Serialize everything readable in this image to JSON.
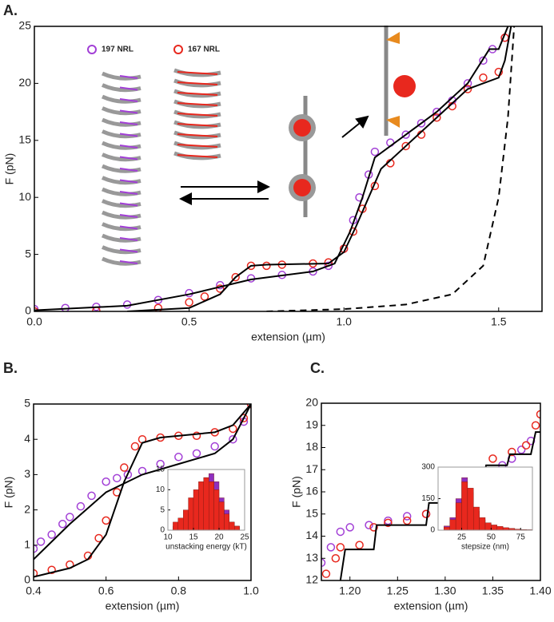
{
  "chart_data": [
    {
      "type": "scatter",
      "panel_label": "A.",
      "xlabel": "extension (µm)",
      "ylabel": "F (pN)",
      "xlim": [
        0,
        1.64
      ],
      "xticks": [
        {
          "value": 0,
          "label": "0.0"
        },
        0.5,
        {
          "value": 1,
          "label": "1.0"
        },
        1.5
      ],
      "ylim": [
        0,
        25
      ],
      "yticks": [
        0,
        5,
        10,
        15,
        20,
        25
      ],
      "series": [
        {
          "name": "197  NRL",
          "color": "#a23fd6",
          "style": "markers",
          "x": [
            0,
            0.1,
            0.2,
            0.3,
            0.4,
            0.5,
            0.6,
            0.7,
            0.8,
            0.9,
            0.95,
            1.0,
            1.03,
            1.05,
            1.08,
            1.1,
            1.15,
            1.2,
            1.25,
            1.3,
            1.35,
            1.4,
            1.45,
            1.48,
            1.52
          ],
          "values": [
            0.2,
            0.3,
            0.4,
            0.6,
            1.0,
            1.6,
            2.3,
            2.9,
            3.2,
            3.5,
            4,
            5.5,
            8,
            10,
            12,
            14,
            14.8,
            15.5,
            16.5,
            17.5,
            18.5,
            20,
            22,
            23,
            24
          ]
        },
        {
          "name": "167  NRL",
          "color": "#e8281e",
          "style": "markers",
          "x": [
            0,
            0.2,
            0.4,
            0.5,
            0.55,
            0.6,
            0.65,
            0.7,
            0.75,
            0.8,
            0.9,
            0.95,
            1.0,
            1.03,
            1.06,
            1.1,
            1.15,
            1.2,
            1.25,
            1.3,
            1.35,
            1.4,
            1.45,
            1.5,
            1.52
          ],
          "values": [
            0,
            0.05,
            0.3,
            0.8,
            1.3,
            2,
            3,
            4,
            4,
            4.1,
            4.2,
            4.3,
            5.5,
            7,
            9,
            11,
            13,
            14.5,
            15.5,
            17,
            18,
            19.5,
            20.5,
            21,
            24
          ]
        },
        {
          "color": "#000000",
          "style": "line",
          "x": [
            0,
            0.3,
            0.5,
            0.7,
            0.9,
            0.97,
            1.02,
            1.06,
            1.1,
            1.2,
            1.3,
            1.4,
            1.47,
            1.5,
            1.53
          ],
          "values": [
            0.1,
            0.5,
            1.5,
            2.8,
            3.5,
            4.2,
            7,
            10,
            13.5,
            15.5,
            17.5,
            20,
            23,
            23,
            25
          ]
        },
        {
          "color": "#000000",
          "style": "line",
          "x": [
            0.3,
            0.5,
            0.6,
            0.65,
            0.7,
            0.75,
            0.95,
            1.0,
            1.04,
            1.08,
            1.12,
            1.2,
            1.3,
            1.4,
            1.5,
            1.52,
            1.54
          ],
          "values": [
            0,
            0.3,
            1.5,
            3,
            4,
            4.1,
            4.2,
            5.2,
            7.5,
            10,
            12.5,
            14.5,
            17,
            19.5,
            20.5,
            22,
            25
          ]
        },
        {
          "color": "#000000",
          "style": "dashed",
          "x": [
            0.75,
            1.0,
            1.2,
            1.35,
            1.45,
            1.5,
            1.53,
            1.55
          ],
          "values": [
            0,
            0.2,
            0.6,
            1.5,
            4,
            10,
            17,
            25
          ]
        }
      ]
    },
    {
      "type": "scatter",
      "panel_label": "B.",
      "xlabel": "extension (µm)",
      "ylabel": "F (pN)",
      "xlim": [
        0.4,
        1.0
      ],
      "xticks": [
        0.4,
        0.6,
        0.8,
        {
          "value": 1,
          "label": "1.0"
        }
      ],
      "ylim": [
        0,
        5
      ],
      "yticks": [
        0,
        1,
        2,
        3,
        4,
        5
      ],
      "series": [
        {
          "color": "#a23fd6",
          "style": "markers",
          "x": [
            0.4,
            0.42,
            0.45,
            0.48,
            0.5,
            0.53,
            0.56,
            0.6,
            0.63,
            0.66,
            0.7,
            0.75,
            0.8,
            0.85,
            0.9,
            0.95,
            0.98,
            1.0
          ],
          "values": [
            0.9,
            1.1,
            1.3,
            1.6,
            1.8,
            2.1,
            2.4,
            2.8,
            2.9,
            3.0,
            3.1,
            3.3,
            3.5,
            3.6,
            3.8,
            4.0,
            4.5,
            5
          ]
        },
        {
          "color": "#e8281e",
          "style": "markers",
          "x": [
            0.4,
            0.45,
            0.5,
            0.55,
            0.58,
            0.6,
            0.63,
            0.65,
            0.68,
            0.7,
            0.75,
            0.8,
            0.85,
            0.9,
            0.95,
            0.98,
            1.0
          ],
          "values": [
            0.2,
            0.3,
            0.45,
            0.7,
            1.2,
            1.7,
            2.5,
            3.2,
            3.8,
            4,
            4.05,
            4.1,
            4.1,
            4.2,
            4.3,
            4.6,
            5
          ]
        },
        {
          "color": "#000000",
          "style": "line",
          "x": [
            0.4,
            0.5,
            0.6,
            0.7,
            0.8,
            0.9,
            0.95,
            1.0
          ],
          "values": [
            0.6,
            1.6,
            2.5,
            3.0,
            3.3,
            3.6,
            4.0,
            5
          ]
        },
        {
          "color": "#000000",
          "style": "line",
          "x": [
            0.4,
            0.5,
            0.55,
            0.6,
            0.65,
            0.7,
            0.75,
            0.9,
            0.95,
            1.0
          ],
          "values": [
            0.1,
            0.35,
            0.6,
            1.3,
            2.8,
            3.9,
            4.05,
            4.2,
            4.4,
            5
          ]
        }
      ]
    },
    {
      "type": "histogram",
      "xlabel": "unstacking energy (kT)",
      "xlim": [
        10,
        25
      ],
      "xticks": [
        10,
        15,
        20,
        25
      ],
      "ylim": [
        0,
        15
      ],
      "yticks": [
        0,
        5,
        10,
        15
      ],
      "bins": [
        11,
        12,
        13,
        14,
        15,
        16,
        17,
        18,
        19,
        20,
        21,
        22,
        23,
        24
      ],
      "series": [
        {
          "color": "#8e2fbf",
          "values": [
            1,
            1,
            2,
            4,
            7,
            10,
            13,
            14,
            12,
            8,
            5,
            2,
            1
          ]
        },
        {
          "color": "#e8281e",
          "values": [
            2,
            3,
            5,
            8,
            10,
            12,
            13,
            12,
            10,
            7,
            4,
            2,
            1
          ]
        }
      ]
    },
    {
      "type": "scatter",
      "panel_label": "C.",
      "xlabel": "extension (µm)",
      "ylabel": "F (pN)",
      "xlim": [
        1.17,
        1.4
      ],
      "xticks": [
        {
          "value": 1.2,
          "label": "1.20"
        },
        1.25,
        {
          "value": 1.3,
          "label": "1.30"
        },
        1.35,
        {
          "value": 1.4,
          "label": "1.40"
        }
      ],
      "ylim": [
        12,
        20
      ],
      "yticks": [
        12,
        13,
        14,
        15,
        16,
        17,
        18,
        19,
        20
      ],
      "series": [
        {
          "color": "#a23fd6",
          "style": "markers",
          "x": [
            1.17,
            1.18,
            1.19,
            1.2,
            1.22,
            1.24,
            1.26,
            1.28,
            1.3,
            1.31,
            1.32,
            1.34,
            1.36,
            1.37,
            1.38,
            1.39
          ],
          "values": [
            12.8,
            13.5,
            14.2,
            14.4,
            14.5,
            14.7,
            14.9,
            15.0,
            15.1,
            15.6,
            16.2,
            16.6,
            17.2,
            17.5,
            17.9,
            18.3
          ]
        },
        {
          "color": "#e8281e",
          "style": "markers",
          "x": [
            1.175,
            1.185,
            1.19,
            1.21,
            1.225,
            1.24,
            1.26,
            1.28,
            1.3,
            1.305,
            1.32,
            1.34,
            1.35,
            1.37,
            1.385,
            1.395,
            1.4
          ],
          "values": [
            12.3,
            13.0,
            13.5,
            13.6,
            14.4,
            14.6,
            14.7,
            15.0,
            15.3,
            16.0,
            16.6,
            16.9,
            17.5,
            17.8,
            18.1,
            19.0,
            19.5
          ]
        },
        {
          "color": "#000000",
          "style": "line",
          "x": [
            1.19,
            1.195,
            1.225,
            1.228,
            1.28,
            1.283,
            1.305,
            1.308,
            1.34,
            1.343,
            1.365,
            1.368,
            1.39,
            1.395,
            1.4
          ],
          "values": [
            12,
            13.4,
            13.4,
            14.5,
            14.5,
            15.5,
            15.5,
            16.6,
            16.6,
            17.2,
            17.2,
            17.7,
            17.7,
            18.7,
            18.7
          ]
        }
      ]
    },
    {
      "type": "histogram",
      "xlabel": "stepsize (nm)",
      "xlim": [
        5,
        85
      ],
      "xticks": [
        25,
        50,
        75
      ],
      "ylim": [
        0,
        300
      ],
      "yticks": [
        0,
        150,
        300
      ],
      "bins": [
        10,
        15,
        20,
        25,
        30,
        35,
        40,
        45,
        50,
        55,
        60,
        65,
        70,
        75,
        80,
        85
      ],
      "series": [
        {
          "color": "#8e2fbf",
          "values": [
            20,
            60,
            150,
            250,
            180,
            90,
            50,
            30,
            20,
            15,
            10,
            8,
            5,
            3,
            2
          ]
        },
        {
          "color": "#e8281e",
          "values": [
            15,
            50,
            130,
            230,
            200,
            110,
            60,
            35,
            25,
            18,
            12,
            8,
            5,
            3,
            2
          ]
        }
      ]
    }
  ]
}
